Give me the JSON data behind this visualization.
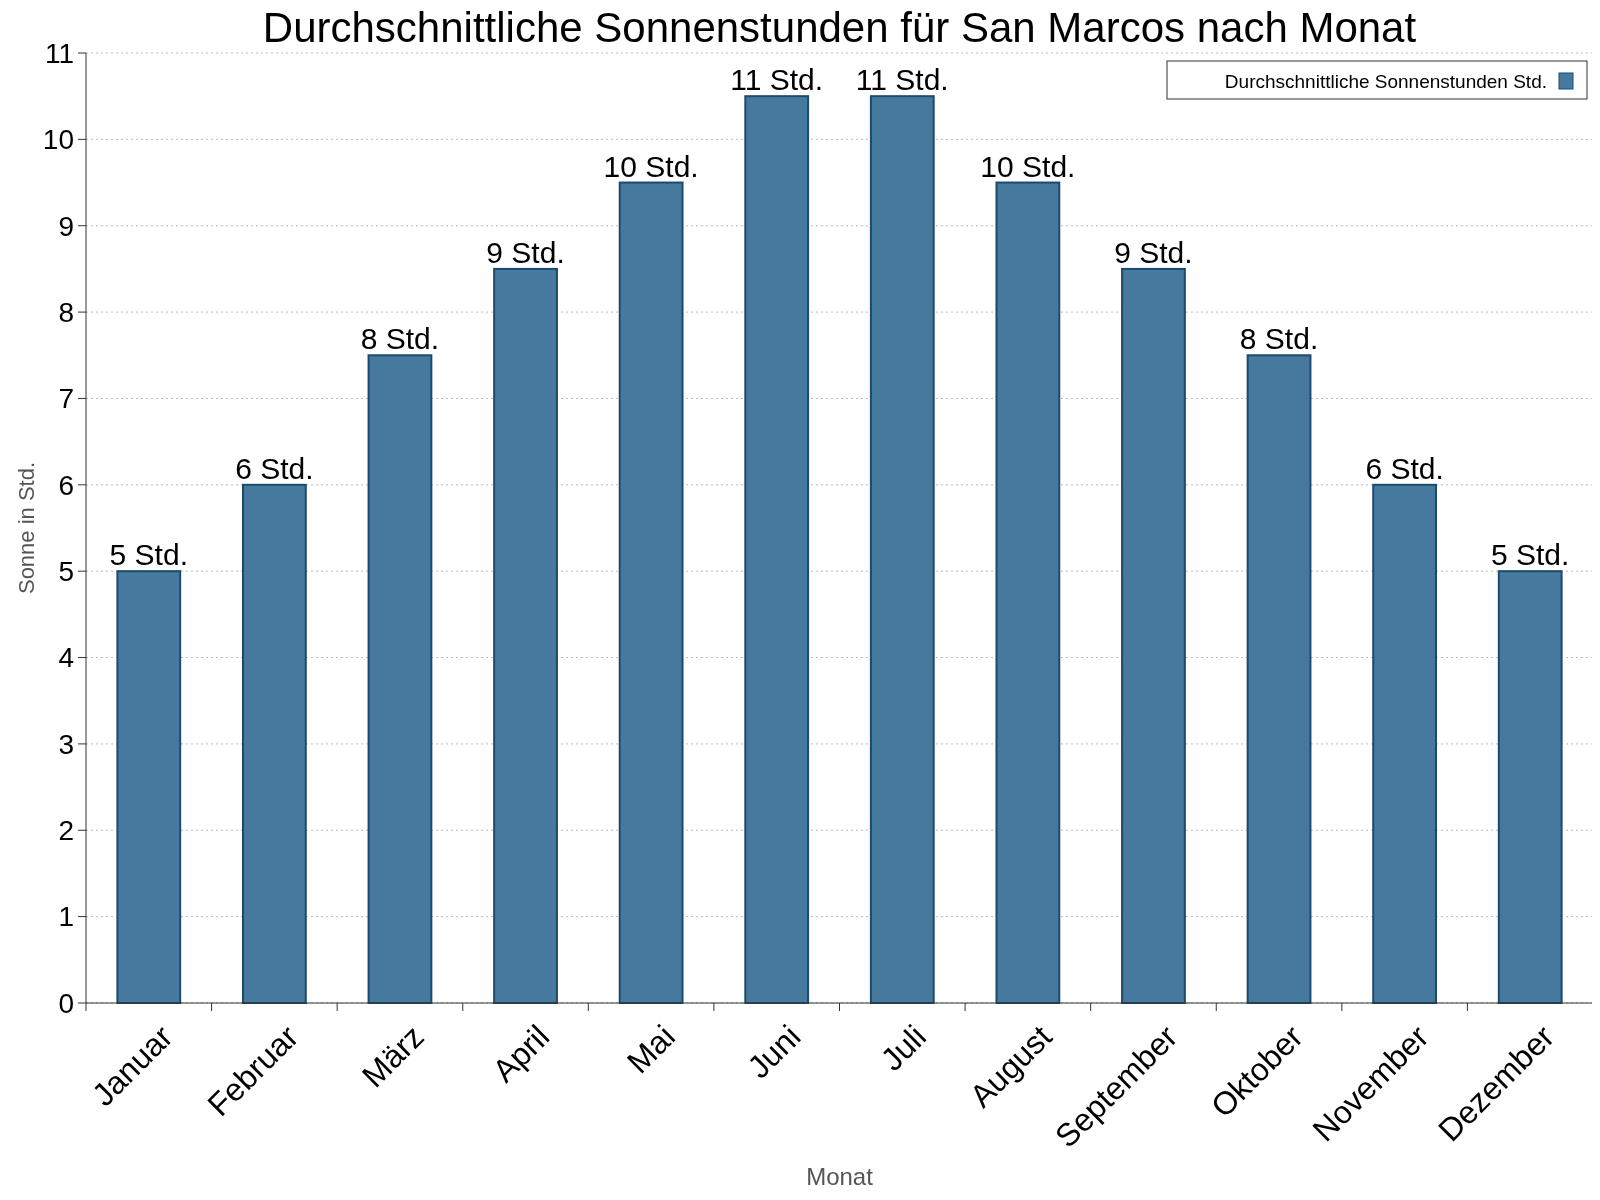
{
  "chart_data": {
    "type": "bar",
    "title": "Durchschnittliche Sonnenstunden für San Marcos nach Monat",
    "xlabel": "Monat",
    "ylabel": "Sonne in Std.",
    "categories": [
      "Januar",
      "Februar",
      "März",
      "April",
      "Mai",
      "Juni",
      "Juli",
      "August",
      "September",
      "Oktober",
      "November",
      "Dezember"
    ],
    "series": [
      {
        "name": "Durchschnittliche Sonnenstunden Std.",
        "color": "#457a9e",
        "values": [
          5,
          6,
          7.5,
          8.5,
          9.5,
          10.5,
          10.5,
          9.5,
          8.5,
          7.5,
          6,
          5
        ],
        "value_labels": [
          "5 Std.",
          "6 Std.",
          "8 Std.",
          "9 Std.",
          "10 Std.",
          "11 Std.",
          "11 Std.",
          "10 Std.",
          "9 Std.",
          "8 Std.",
          "6 Std.",
          "5 Std."
        ]
      }
    ],
    "ylim": [
      0,
      11
    ],
    "yticks": [
      0,
      1,
      2,
      3,
      4,
      5,
      6,
      7,
      8,
      9,
      10,
      11
    ],
    "grid": "y",
    "legend": "top right"
  }
}
